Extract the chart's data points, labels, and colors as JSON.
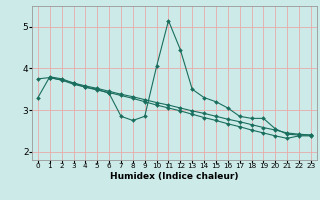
{
  "xlabel": "Humidex (Indice chaleur)",
  "xlim": [
    -0.5,
    23.5
  ],
  "ylim": [
    1.8,
    5.5
  ],
  "yticks": [
    2,
    3,
    4,
    5
  ],
  "bg_color": "#cceae8",
  "grid_color": "#e8aaaa",
  "line_color": "#1a6e5e",
  "series": [
    {
      "x": [
        0,
        1,
        2,
        3,
        4,
        5,
        6,
        7,
        8,
        9,
        10,
        11,
        12,
        13,
        14,
        15,
        16,
        17,
        18,
        19,
        20,
        21,
        22,
        23
      ],
      "y": [
        3.3,
        3.8,
        3.75,
        3.65,
        3.55,
        3.5,
        3.4,
        2.85,
        2.75,
        2.85,
        4.05,
        5.15,
        4.45,
        3.5,
        3.3,
        3.2,
        3.05,
        2.85,
        2.8,
        2.8,
        2.55,
        2.42,
        2.4,
        2.4
      ]
    },
    {
      "x": [
        0,
        1,
        2,
        3,
        4,
        5,
        6,
        7,
        8,
        9,
        10,
        11,
        12,
        13,
        14,
        15,
        16,
        17,
        18,
        19,
        20,
        21,
        22,
        23
      ],
      "y": [
        3.75,
        3.78,
        3.72,
        3.65,
        3.58,
        3.52,
        3.45,
        3.38,
        3.32,
        3.25,
        3.18,
        3.12,
        3.05,
        2.98,
        2.92,
        2.85,
        2.78,
        2.72,
        2.65,
        2.58,
        2.52,
        2.45,
        2.42,
        2.4
      ]
    },
    {
      "x": [
        1,
        2,
        3,
        4,
        5,
        6,
        7,
        8,
        9,
        10,
        11,
        12,
        13,
        14,
        15,
        16,
        17,
        18,
        19,
        20,
        21,
        22,
        23
      ],
      "y": [
        3.78,
        3.72,
        3.62,
        3.55,
        3.48,
        3.42,
        3.35,
        3.28,
        3.2,
        3.12,
        3.05,
        2.98,
        2.9,
        2.82,
        2.75,
        2.67,
        2.6,
        2.52,
        2.45,
        2.38,
        2.32,
        2.38,
        2.38
      ]
    }
  ]
}
